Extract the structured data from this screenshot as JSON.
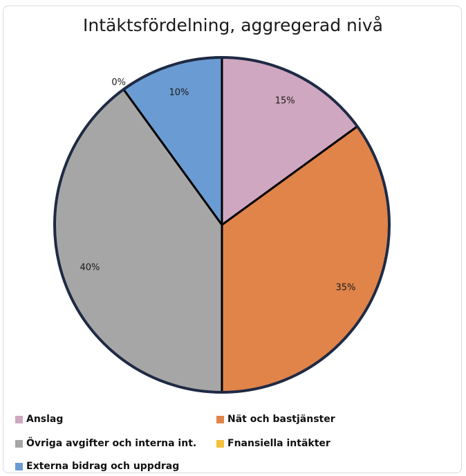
{
  "chart_data": {
    "type": "pie",
    "title": "Intäktsfördelning, aggregerad nivå",
    "slices": [
      {
        "name": "Anslag",
        "value": 15,
        "label": "15%",
        "color": "#d0a7c0"
      },
      {
        "name": "Nät och bastjänster",
        "value": 35,
        "label": "35%",
        "color": "#e0844a"
      },
      {
        "name": "Övriga avgifter och interna int.",
        "value": 40,
        "label": "40%",
        "color": "#a6a6a6"
      },
      {
        "name": "Fnansiella intäkter",
        "value": 0,
        "label": "0%",
        "color": "#f4c23a"
      },
      {
        "name": "Externa bidrag och uppdrag",
        "value": 10,
        "label": "10%",
        "color": "#6b9bd3"
      }
    ],
    "legend_position": "bottom"
  }
}
